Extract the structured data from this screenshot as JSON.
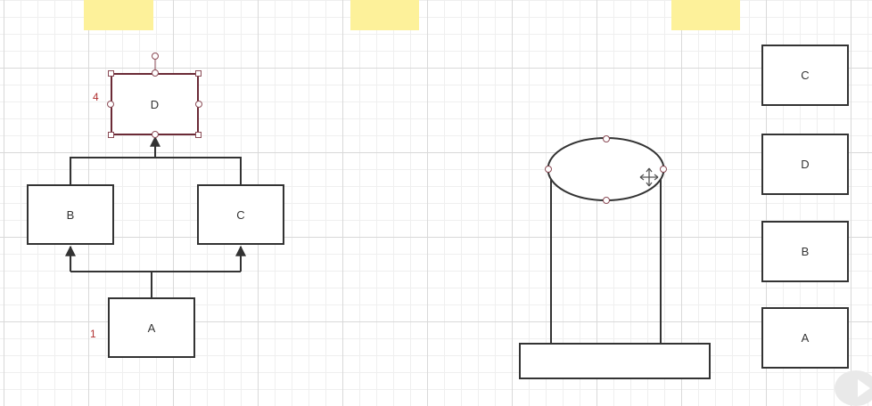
{
  "tree": {
    "top_node": "D",
    "top_number": "4",
    "left_node": "B",
    "right_node": "C",
    "bottom_node": "A",
    "bottom_number": "1"
  },
  "stack_list": [
    "C",
    "D",
    "B",
    "A"
  ],
  "colors": {
    "sticky_note": "#fdf19a",
    "selection": "#6b2a36",
    "stroke": "#333333",
    "number_label": "#b03030"
  }
}
